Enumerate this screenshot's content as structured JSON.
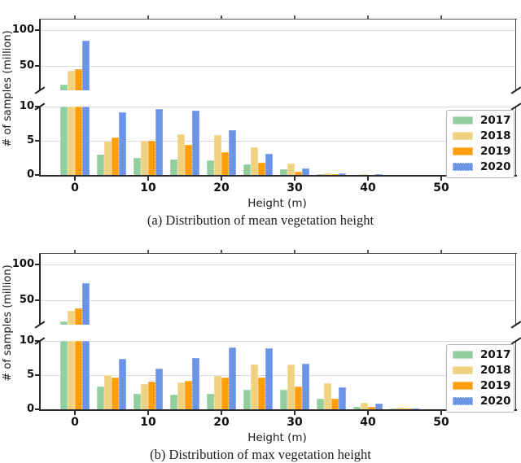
{
  "palette": {
    "green_2017": "#94ce9e",
    "tan_2018": "#eed27f",
    "orange_2019": "#ff9d0d",
    "blue_2020": "#6b93e6",
    "axis": "#2b2b2b",
    "grid": "#dcdcdc"
  },
  "chart_data": [
    {
      "type": "bar",
      "id": "a",
      "caption": "(a) Distribution of mean vegetation height",
      "xlabel": "Height (m)",
      "ylabel": "# of samples (million)",
      "x_tick_labels": [
        "0",
        "10",
        "20",
        "30",
        "40",
        "50"
      ],
      "x_tick_values": [
        0,
        10,
        20,
        30,
        40,
        50
      ],
      "broken_y_axis": {
        "top_panel_ticks": [
          "50",
          "100"
        ],
        "top_panel_tick_values": [
          50,
          100
        ],
        "top_panel_range": [
          16,
          116
        ],
        "bottom_panel_ticks": [
          "0",
          "5",
          "10"
        ],
        "bottom_panel_tick_values": [
          0,
          5,
          10
        ],
        "bottom_panel_range": [
          0,
          10
        ]
      },
      "grid": true,
      "legend_position": "lower right",
      "categories": [
        0,
        5,
        10,
        15,
        20,
        25,
        30,
        35,
        40,
        45
      ],
      "series": [
        {
          "name": "2017",
          "color": "#94ce9e",
          "values": [
            24,
            3.0,
            2.5,
            2.3,
            2.2,
            1.6,
            0.8,
            0.15,
            0.05,
            0.02
          ]
        },
        {
          "name": "2018",
          "color": "#eed27f",
          "values": [
            43,
            4.9,
            5.0,
            6.0,
            5.8,
            4.0,
            1.7,
            0.2,
            0.08,
            0.03
          ]
        },
        {
          "name": "2019",
          "color": "#ff9d0d",
          "values": [
            46,
            5.5,
            5.0,
            4.4,
            3.3,
            1.8,
            0.5,
            0.1,
            0.05,
            0.02
          ]
        },
        {
          "name": "2020",
          "color": "#6b93e6",
          "values": [
            85,
            9.2,
            9.7,
            9.4,
            6.6,
            3.1,
            1.0,
            0.2,
            0.06,
            0.02
          ]
        }
      ]
    },
    {
      "type": "bar",
      "id": "b",
      "caption": "(b) Distribution of max vegetation height",
      "xlabel": "Height (m)",
      "ylabel": "# of samples (million)",
      "x_tick_labels": [
        "0",
        "10",
        "20",
        "30",
        "40",
        "50"
      ],
      "x_tick_values": [
        0,
        10,
        20,
        30,
        40,
        50
      ],
      "broken_y_axis": {
        "top_panel_ticks": [
          "50",
          "100"
        ],
        "top_panel_tick_values": [
          50,
          100
        ],
        "top_panel_range": [
          16,
          116
        ],
        "bottom_panel_ticks": [
          "0",
          "5",
          "10"
        ],
        "bottom_panel_tick_values": [
          0,
          5,
          10
        ],
        "bottom_panel_range": [
          0,
          10
        ]
      },
      "grid": true,
      "legend_position": "lower right",
      "categories": [
        0,
        5,
        10,
        15,
        20,
        25,
        30,
        35,
        40,
        45
      ],
      "series": [
        {
          "name": "2017",
          "color": "#94ce9e",
          "values": [
            20,
            3.3,
            2.3,
            2.1,
            2.3,
            2.9,
            2.8,
            1.6,
            0.4,
            0.1
          ]
        },
        {
          "name": "2018",
          "color": "#eed27f",
          "values": [
            35,
            5.0,
            3.7,
            3.9,
            4.9,
            6.5,
            6.5,
            3.8,
            0.9,
            0.2
          ]
        },
        {
          "name": "2019",
          "color": "#ff9d0d",
          "values": [
            39,
            4.6,
            4.0,
            4.2,
            4.7,
            4.6,
            3.3,
            1.5,
            0.4,
            0.1
          ]
        },
        {
          "name": "2020",
          "color": "#6b93e6",
          "values": [
            74,
            7.4,
            6.0,
            7.5,
            9.0,
            8.9,
            6.7,
            3.2,
            0.8,
            0.15
          ]
        }
      ]
    }
  ]
}
